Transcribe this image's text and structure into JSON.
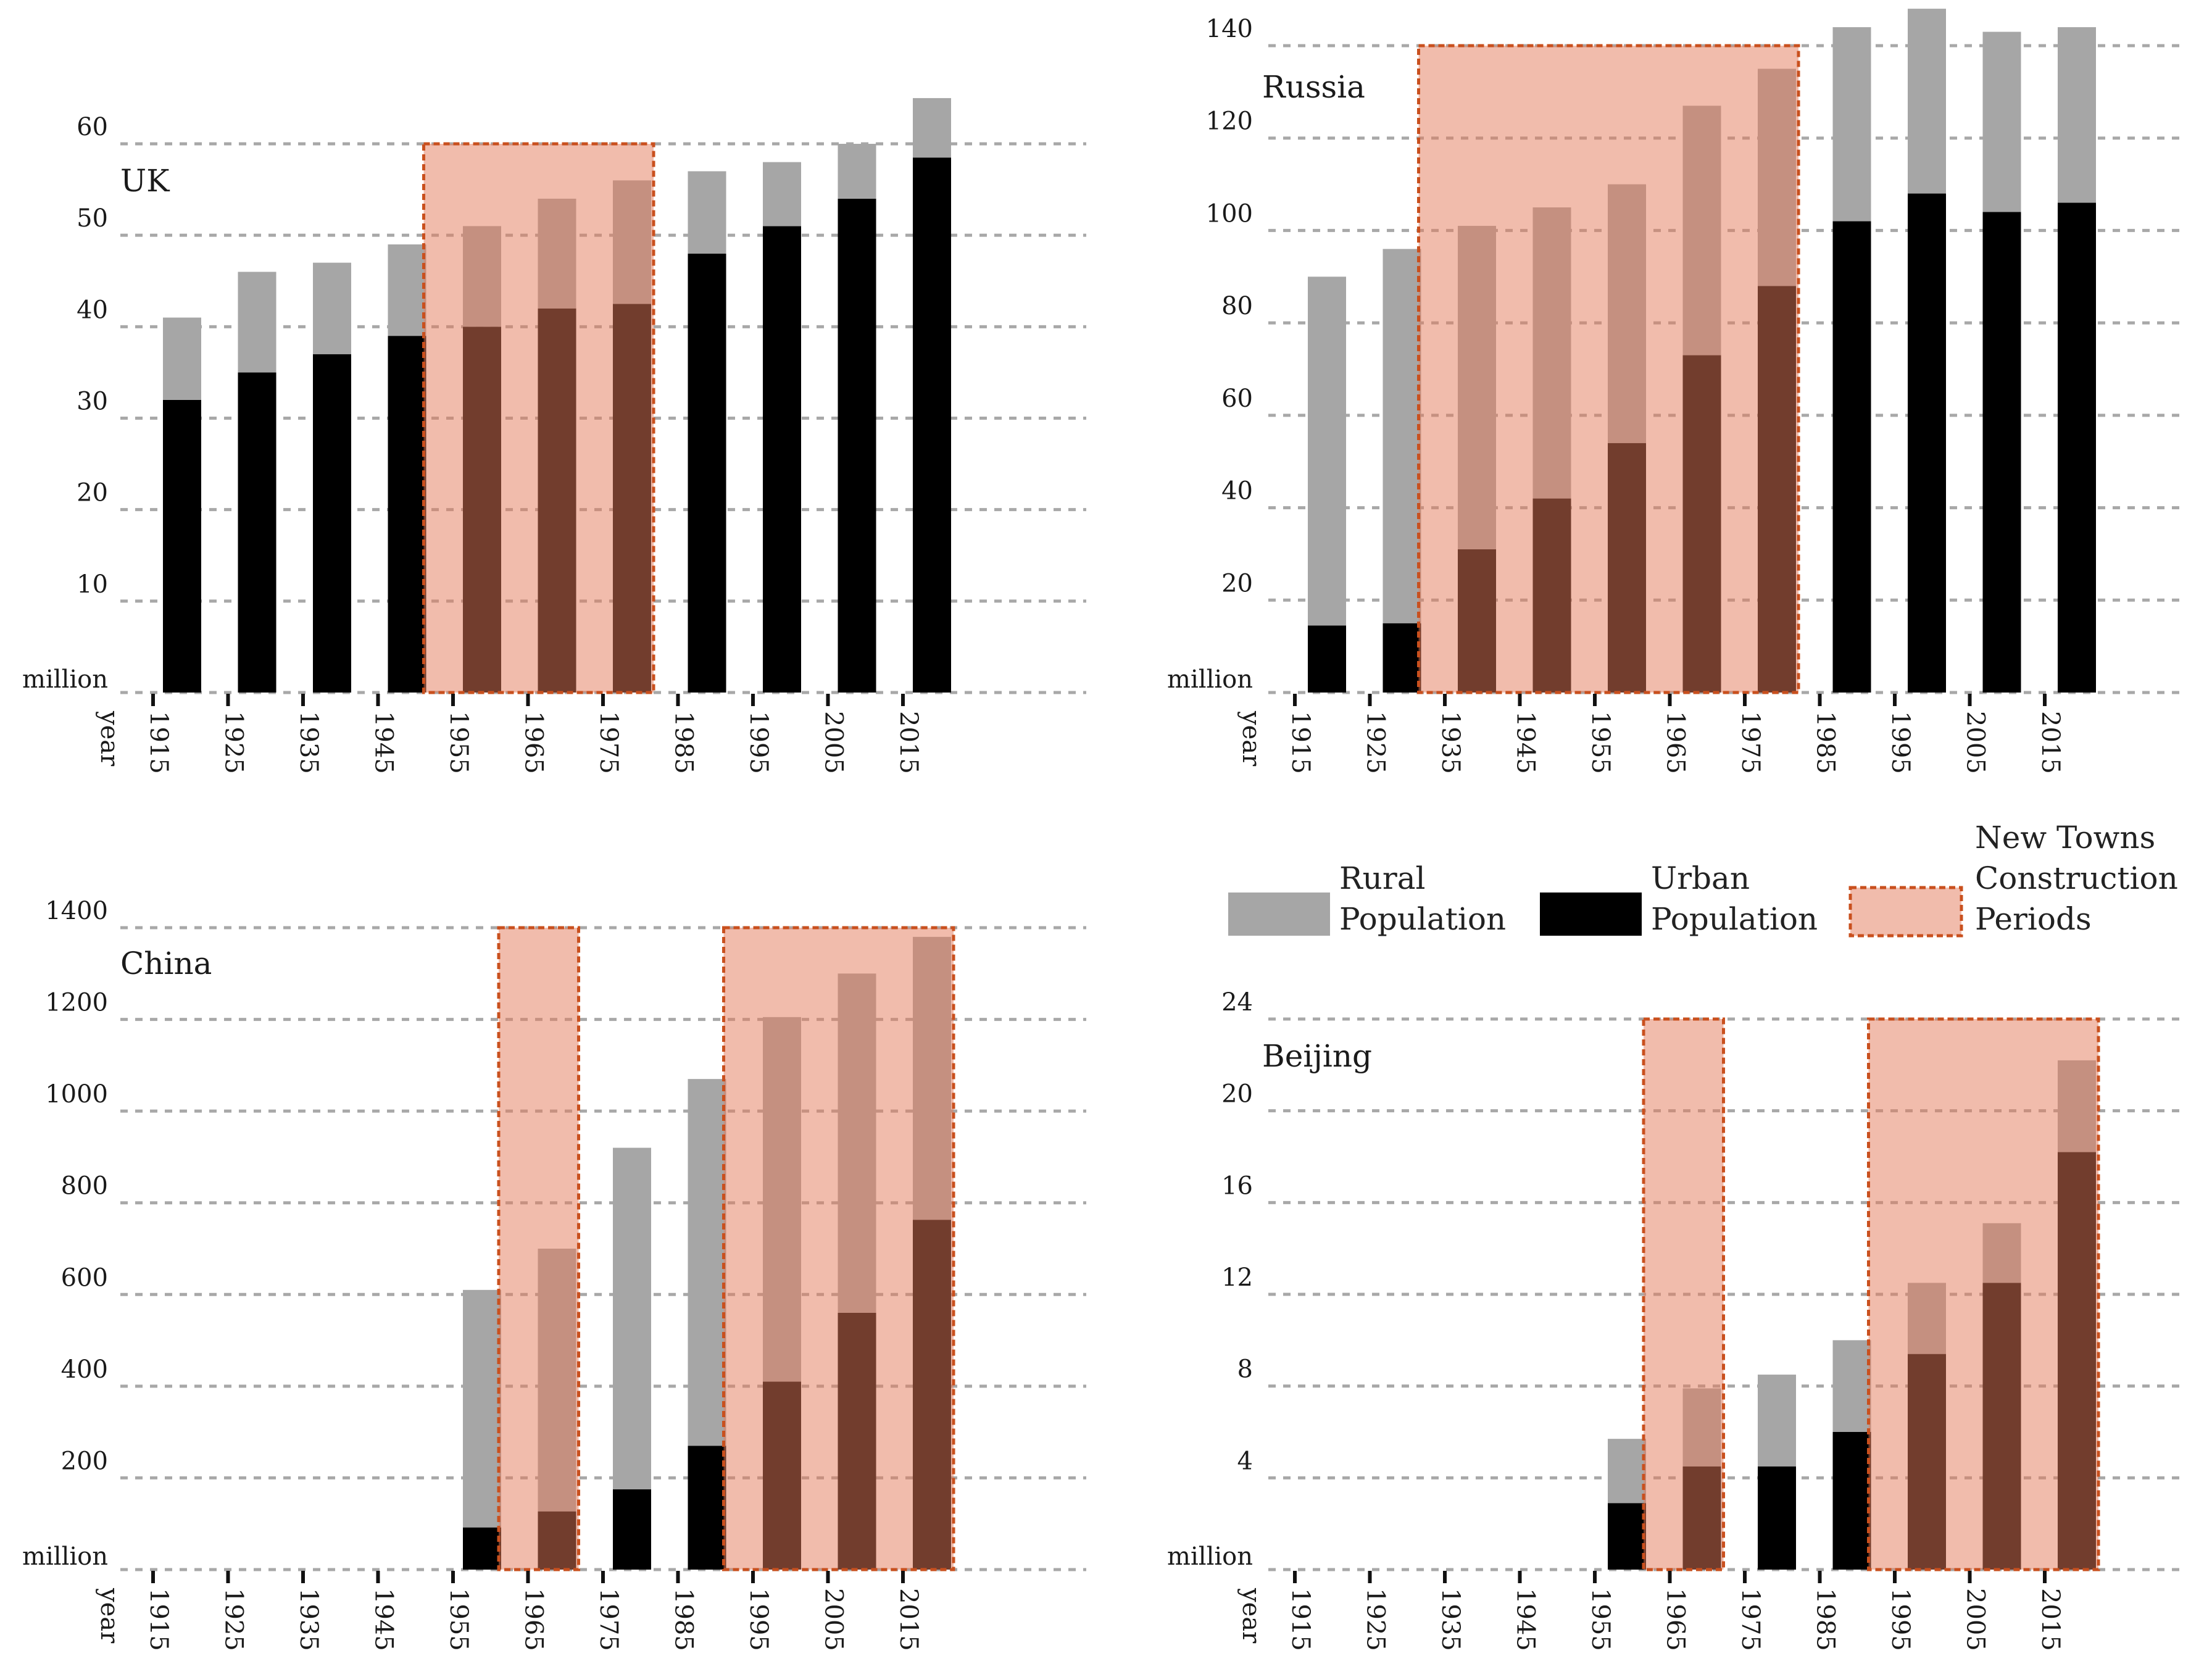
{
  "colors": {
    "rural": "#a6a6a6",
    "urban": "#000000",
    "period_fill": "#e47a5a",
    "period_fill_opacity": 0.5,
    "period_stroke": "#c9501e",
    "grid": "#a8a8a8"
  },
  "legend": {
    "rural": [
      "Rural",
      "Population"
    ],
    "urban": [
      "Urban",
      "Population"
    ],
    "period": [
      "New Towns",
      "Construction",
      "Periods"
    ]
  },
  "chart_data": [
    {
      "type": "bar",
      "stacked": true,
      "title": "UK",
      "ylabel": "million",
      "xlabel": "year",
      "categories": [
        "1915",
        "1925",
        "1935",
        "1945",
        "1955",
        "1965",
        "1975",
        "1985",
        "1995",
        "2005",
        "2015"
      ],
      "ylim": [
        0,
        60
      ],
      "yticks": [
        10,
        20,
        30,
        40,
        50,
        60
      ],
      "series": [
        {
          "name": "Urban Population",
          "values": [
            32,
            35,
            37,
            39,
            40,
            42,
            42.5,
            48,
            51,
            54,
            58.5
          ]
        },
        {
          "name": "Rural Population",
          "values": [
            9,
            11,
            10,
            10,
            11,
            12,
            13.5,
            9,
            7,
            6,
            6.5
          ]
        }
      ],
      "periods": [
        {
          "from": "1945",
          "to": "1975"
        }
      ]
    },
    {
      "type": "bar",
      "stacked": true,
      "title": "Russia",
      "ylabel": "million",
      "xlabel": "year",
      "categories": [
        "1915",
        "1925",
        "1935",
        "1945",
        "1955",
        "1965",
        "1975",
        "1985",
        "1995",
        "2005",
        "2015"
      ],
      "ylim": [
        0,
        140
      ],
      "yticks": [
        20,
        40,
        60,
        80,
        100,
        120,
        140
      ],
      "series": [
        {
          "name": "Urban Population",
          "values": [
            14.5,
            15,
            31,
            42,
            54,
            73,
            88,
            102,
            108,
            104,
            106
          ]
        },
        {
          "name": "Rural Population",
          "values": [
            75.5,
            81,
            70,
            63,
            56,
            54,
            47,
            42,
            40,
            39,
            38
          ]
        }
      ],
      "periods": [
        {
          "from": "1925",
          "to": "1975"
        }
      ]
    },
    {
      "type": "bar",
      "stacked": true,
      "title": "China",
      "ylabel": "million",
      "xlabel": "year",
      "categories": [
        "1915",
        "1925",
        "1935",
        "1945",
        "1955",
        "1965",
        "1975",
        "1985",
        "1995",
        "2005",
        "2015"
      ],
      "ylim": [
        0,
        1400
      ],
      "yticks": [
        200,
        400,
        600,
        800,
        1000,
        1200,
        1400
      ],
      "series": [
        {
          "name": "Urban Population",
          "values": [
            null,
            null,
            null,
            null,
            92,
            127,
            175,
            270,
            410,
            560,
            763
          ]
        },
        {
          "name": "Rural Population",
          "values": [
            null,
            null,
            null,
            null,
            518,
            573,
            745,
            800,
            795,
            740,
            617
          ]
        }
      ],
      "periods": [
        {
          "from": "1955",
          "to": "1965"
        },
        {
          "from": "1985",
          "to": "2015"
        }
      ]
    },
    {
      "type": "bar",
      "stacked": true,
      "title": "Beijing",
      "ylabel": "million",
      "xlabel": "year",
      "categories": [
        "1915",
        "1925",
        "1935",
        "1945",
        "1955",
        "1965",
        "1975",
        "1985",
        "1995",
        "2005",
        "2015"
      ],
      "ylim": [
        0,
        24
      ],
      "yticks": [
        4,
        8,
        12,
        16,
        20,
        24
      ],
      "series": [
        {
          "name": "Urban Population",
          "values": [
            null,
            null,
            null,
            null,
            2.9,
            4.5,
            4.5,
            6,
            9.4,
            12.5,
            18.2
          ]
        },
        {
          "name": "Rural Population",
          "values": [
            null,
            null,
            null,
            null,
            2.8,
            3.4,
            4,
            4,
            3.1,
            2.6,
            4
          ]
        }
      ],
      "periods": [
        {
          "from": "1955",
          "to": "1965"
        },
        {
          "from": "1985",
          "to": "2015"
        }
      ]
    }
  ]
}
